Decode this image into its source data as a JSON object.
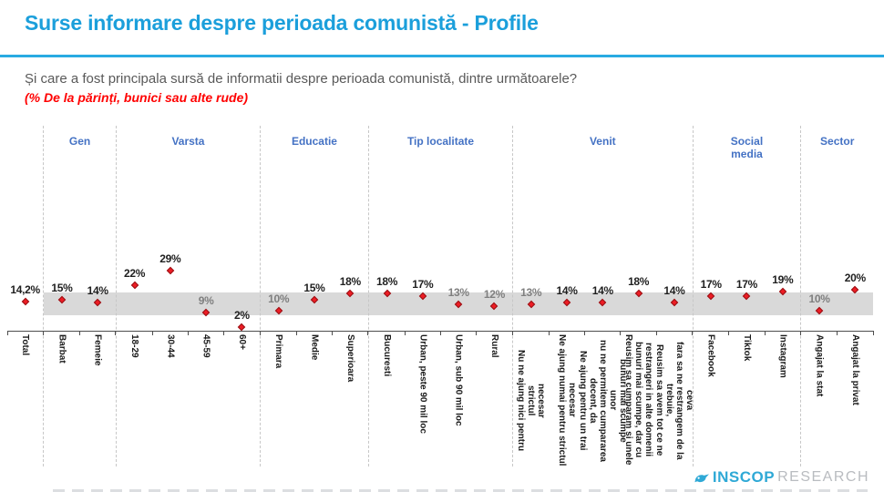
{
  "page": {
    "title": "Surse informare despre perioada comunistă - Profile",
    "subtitle": "Și care a fost principala sursă de informatii despre perioada comunistă, dintre următoarele?",
    "note": "(% De la părinți, bunici sau alte rude)"
  },
  "colors": {
    "title_accent": "#1B9FDB",
    "rule": "#29ABE2",
    "group_header": "#4472C4",
    "marker_red": "#ED1C24",
    "reference_band": "#D9D9D9",
    "value_label": "#1F1F1F",
    "value_label_muted": "#7F7F7F",
    "logo_cyan": "#2FA9D6",
    "logo_gray": "#B9BCC0"
  },
  "logo": {
    "icon": "hummingbird-icon",
    "brand": "INSCOP",
    "suffix": "RESEARCH"
  },
  "chart_data": {
    "type": "scatter",
    "unit": "%",
    "ylim": [
      0,
      32
    ],
    "grid": false,
    "legend": "none",
    "reference_band": {
      "from": 8.3,
      "to": 19.1,
      "note": "gray band across subgroups"
    },
    "groups": [
      {
        "header": "",
        "items": [
          {
            "label": "Total",
            "value": 14.2,
            "value_label": "14,2%",
            "muted": false
          }
        ]
      },
      {
        "header": "Gen",
        "items": [
          {
            "label": "Barbat",
            "value": 15,
            "value_label": "15%",
            "muted": false
          },
          {
            "label": "Femeie",
            "value": 14,
            "value_label": "14%",
            "muted": false
          }
        ]
      },
      {
        "header": "Varsta",
        "items": [
          {
            "label": "18-29",
            "value": 22,
            "value_label": "22%",
            "muted": false
          },
          {
            "label": "30-44",
            "value": 29,
            "value_label": "29%",
            "muted": false
          },
          {
            "label": "45-59",
            "value": 9,
            "value_label": "9%",
            "muted": true
          },
          {
            "label": "60+",
            "value": 2,
            "value_label": "2%",
            "muted": false
          }
        ]
      },
      {
        "header": "Educatie",
        "items": [
          {
            "label": "Primara",
            "value": 10,
            "value_label": "10%",
            "muted": true
          },
          {
            "label": "Medie",
            "value": 15,
            "value_label": "15%",
            "muted": false
          },
          {
            "label": "Superioara",
            "value": 18,
            "value_label": "18%",
            "muted": false
          }
        ]
      },
      {
        "header": "Tip localitate",
        "items": [
          {
            "label": "Bucuresti",
            "value": 18,
            "value_label": "18%",
            "muted": false
          },
          {
            "label": "Urban, peste 90 mil loc",
            "value": 17,
            "value_label": "17%",
            "muted": false
          },
          {
            "label": "Urban, sub 90 mil loc",
            "value": 13,
            "value_label": "13%",
            "muted": true
          },
          {
            "label": "Rural",
            "value": 12,
            "value_label": "12%",
            "muted": true
          }
        ]
      },
      {
        "header": "Venit",
        "items": [
          {
            "label": "Nu ne ajung nici pentru strictul\nnecesar",
            "value": 13,
            "value_label": "13%",
            "muted": true
          },
          {
            "label": "Ne ajung numai pentru strictul\nnecesar",
            "value": 14,
            "value_label": "14%",
            "muted": false
          },
          {
            "label": "Ne ajung pentru un trai decent, da\nnu ne permitem cumpararea unor\nbunuri mai scumpe",
            "value": 14,
            "value_label": "14%",
            "muted": false
          },
          {
            "label": "Reusim sa cumparam si unele\nbunuri mai scumpe, dar cu\nrestrangeri in alte domenii",
            "value": 18,
            "value_label": "18%",
            "muted": false
          },
          {
            "label": "Reusim sa avem tot ce ne trebuie,\nfara sa ne restrangem de la ceva",
            "value": 14,
            "value_label": "14%",
            "muted": false
          }
        ]
      },
      {
        "header": "Social media",
        "items": [
          {
            "label": "Facebook",
            "value": 17,
            "value_label": "17%",
            "muted": false
          },
          {
            "label": "Tiktok",
            "value": 17,
            "value_label": "17%",
            "muted": false
          },
          {
            "label": "Instagram",
            "value": 19,
            "value_label": "19%",
            "muted": false
          }
        ]
      },
      {
        "header": "Sector",
        "items": [
          {
            "label": "Angajat la stat",
            "value": 10,
            "value_label": "10%",
            "muted": true
          },
          {
            "label": "Angajat la privat",
            "value": 20,
            "value_label": "20%",
            "muted": false
          }
        ]
      }
    ]
  }
}
